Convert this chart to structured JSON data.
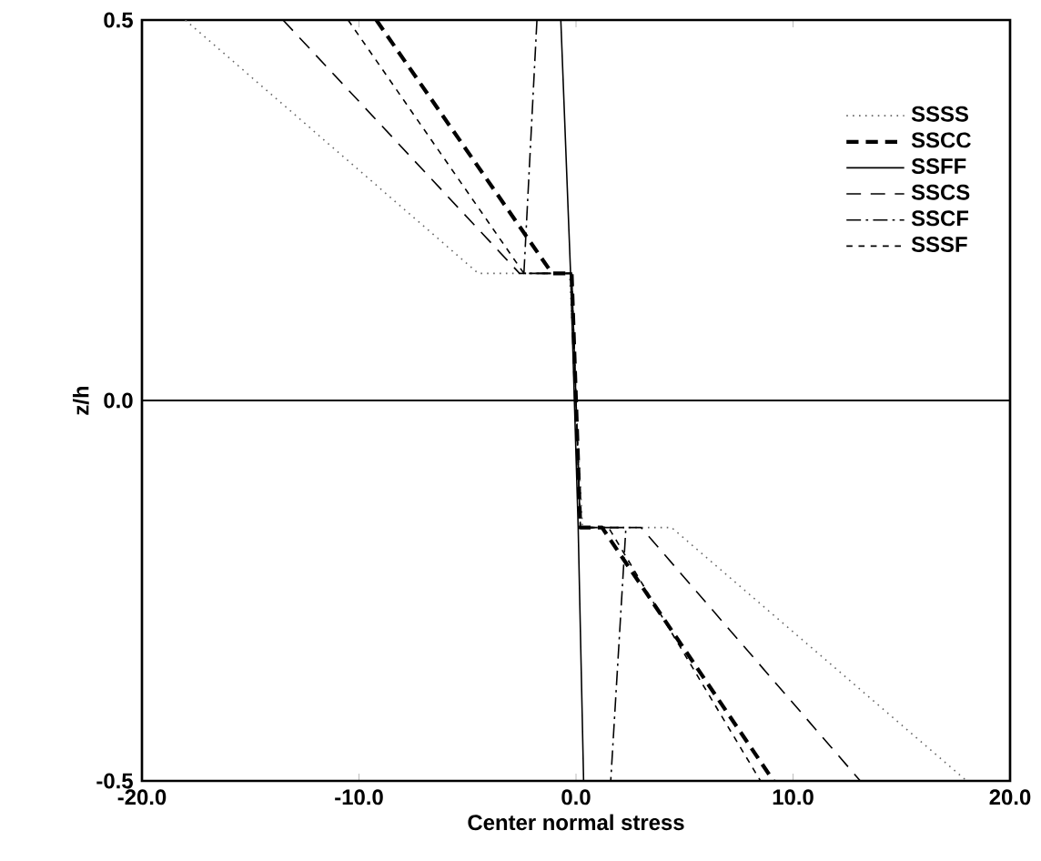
{
  "chart_data": {
    "type": "line",
    "xlabel": "Center normal stress",
    "ylabel": "z/h",
    "xlim": [
      -20,
      20
    ],
    "ylim": [
      -0.5,
      0.5
    ],
    "xticks": [
      {
        "value": -20,
        "label": "-20.0"
      },
      {
        "value": -10,
        "label": "-10.0"
      },
      {
        "value": 0,
        "label": "0.0"
      },
      {
        "value": 10,
        "label": "10.0"
      },
      {
        "value": 20,
        "label": "20.0"
      }
    ],
    "yticks": [
      {
        "value": -0.5,
        "label": "-0.5"
      },
      {
        "value": 0,
        "label": "0.0"
      },
      {
        "value": 0.5,
        "label": "0.5"
      }
    ],
    "grid": false,
    "legend": "top right",
    "marker": "none",
    "ref_lines": [
      {
        "axis": "y",
        "value": 0,
        "color": "#000000"
      }
    ],
    "series": [
      {
        "name": "SSSS",
        "color": "#666666",
        "line_style": "dotted",
        "x": [
          -18,
          -4.5,
          -0.3,
          0.3,
          4.4,
          18
        ],
        "values": [
          0.5,
          0.167,
          0.167,
          -0.167,
          -0.167,
          -0.5
        ]
      },
      {
        "name": "SSCC",
        "color": "#000000",
        "line_style": "dashed",
        "x": [
          -9.2,
          -1.1,
          -0.2,
          0.2,
          1.2,
          9.1
        ],
        "values": [
          0.5,
          0.167,
          0.167,
          -0.167,
          -0.167,
          -0.5
        ]
      },
      {
        "name": "SSFF",
        "color": "#000000",
        "line_style": "solid",
        "x": [
          -0.7,
          -0.25,
          -0.25,
          0.1,
          0.1,
          0.35
        ],
        "values": [
          0.5,
          0.167,
          0.167,
          -0.167,
          -0.167,
          -0.5
        ]
      },
      {
        "name": "SSCS",
        "color": "#000000",
        "line_style": "long dashed",
        "x": [
          -13.5,
          -2.6,
          -0.2,
          0.2,
          3.0,
          13.1
        ],
        "values": [
          0.5,
          0.167,
          0.167,
          -0.167,
          -0.167,
          -0.5
        ]
      },
      {
        "name": "SSCF",
        "color": "#000000",
        "line_style": "dashdot",
        "x": [
          -1.8,
          -2.4,
          -0.2,
          0.2,
          2.3,
          1.6
        ],
        "values": [
          0.5,
          0.167,
          0.167,
          -0.167,
          -0.167,
          -0.5
        ]
      },
      {
        "name": "SSSF",
        "color": "#000000",
        "line_style": "short dashed",
        "x": [
          -10.5,
          -2.4,
          -0.2,
          0.2,
          1.5,
          8.5
        ],
        "values": [
          0.5,
          0.167,
          0.167,
          -0.167,
          -0.167,
          -0.5
        ]
      }
    ]
  }
}
